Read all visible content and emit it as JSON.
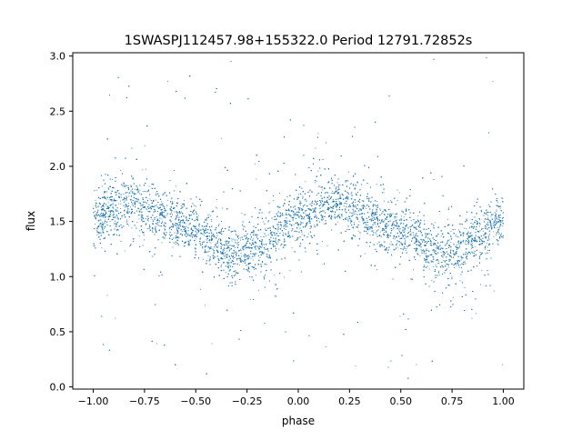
{
  "chart_data": {
    "type": "scatter",
    "title": "1SWASPJ112457.98+155322.0 Period 12791.72852s",
    "xlabel": "phase",
    "ylabel": "flux",
    "xlim": [
      -1.1,
      1.1
    ],
    "ylim": [
      -0.02,
      3.03
    ],
    "x_ticks": [
      -1.0,
      -0.75,
      -0.5,
      -0.25,
      0.0,
      0.25,
      0.5,
      0.75,
      1.0
    ],
    "x_tick_labels": [
      "−1.00",
      "−0.75",
      "−0.50",
      "−0.25",
      "0.00",
      "0.25",
      "0.50",
      "0.75",
      "1.00"
    ],
    "y_ticks": [
      0.0,
      0.5,
      1.0,
      1.5,
      2.0,
      2.5,
      3.0
    ],
    "y_tick_labels": [
      "0.0",
      "0.5",
      "1.0",
      "1.5",
      "2.0",
      "2.5",
      "3.0"
    ],
    "grid": false,
    "marker_color": "#1f77b4",
    "series": [
      {
        "phase_x": [
          -1.0,
          -0.95,
          -0.9,
          -0.85,
          -0.8,
          -0.75,
          -0.7,
          -0.65,
          -0.6,
          -0.55,
          -0.5,
          -0.45,
          -0.4,
          -0.35,
          -0.3,
          -0.25,
          -0.2,
          -0.15,
          -0.1,
          -0.05,
          0.0,
          0.05,
          0.1,
          0.15,
          0.2,
          0.25,
          0.3,
          0.35,
          0.4,
          0.45,
          0.5,
          0.55,
          0.6,
          0.65,
          0.7,
          0.75,
          0.8,
          0.85,
          0.9,
          0.95,
          1.0
        ],
        "flux_center": [
          1.52,
          1.58,
          1.62,
          1.65,
          1.66,
          1.64,
          1.6,
          1.55,
          1.5,
          1.45,
          1.42,
          1.37,
          1.3,
          1.24,
          1.2,
          1.21,
          1.26,
          1.33,
          1.4,
          1.47,
          1.52,
          1.58,
          1.62,
          1.65,
          1.66,
          1.64,
          1.6,
          1.55,
          1.5,
          1.45,
          1.42,
          1.37,
          1.3,
          1.24,
          1.2,
          1.21,
          1.26,
          1.33,
          1.4,
          1.47,
          1.52
        ],
        "core_scatter": 0.12,
        "n_points": 16000
      }
    ]
  }
}
